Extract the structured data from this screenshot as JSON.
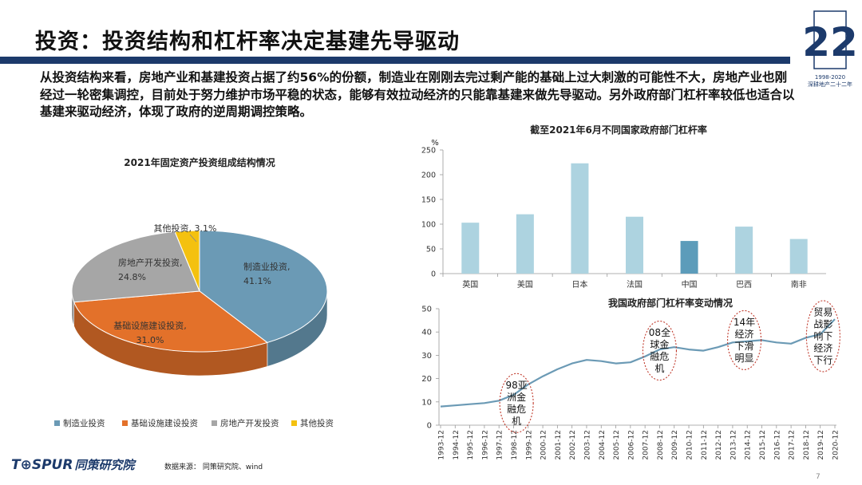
{
  "header": {
    "title": "投资：投资结构和杠杆率决定基建先导驱动",
    "logo_text": "深耕地产二十二年",
    "logo_years": "1998-2020",
    "logo_number": "22"
  },
  "intro": "从投资结构来看，房地产业和基建投资占据了约56%的份额，制造业在刚刚去完过剩产能的基础上过大刺激的可能性不大，房地产业也刚经过一轮密集调控，目前处于努力维护市场平稳的状态，能够有效拉动经济的只能靠基建来做先导驱动。另外政府部门杠杆率较低也适合以基建来驱动经济，体现了政府的逆周期调控策略。",
  "chart_data": [
    {
      "type": "pie",
      "title": "2021年固定资产投资组成结构情况",
      "slices": [
        {
          "name": "制造业投资",
          "value": 41.1,
          "label": "制造业投资, 41.1%",
          "color": "#6b9ab5"
        },
        {
          "name": "基础设施建设投资",
          "value": 31.0,
          "label": "基础设施建设投资, 31.0%",
          "color": "#e3712a"
        },
        {
          "name": "房地产开发投资",
          "value": 24.8,
          "label": "房地产开发投资, 24.8%",
          "color": "#a6a6a6"
        },
        {
          "name": "其他投资",
          "value": 3.1,
          "label": "其他投资, 3.1%",
          "color": "#f4c10f"
        }
      ],
      "legend": [
        "制造业投资",
        "基础设施建设投资",
        "房地产开发投资",
        "其他投资"
      ]
    },
    {
      "type": "bar",
      "title": "截至2021年6月不同国家政府部门杠杆率",
      "unit": "%",
      "categories": [
        "英国",
        "美国",
        "日本",
        "法国",
        "中国",
        "巴西",
        "南非"
      ],
      "values": [
        103,
        120,
        223,
        115,
        66,
        95,
        70
      ],
      "ylim": [
        0,
        250
      ],
      "yticks": [
        0,
        50,
        100,
        150,
        200,
        250
      ],
      "color": "#add3e0",
      "highlight_color": "#5c9cba",
      "highlight_index": 4
    },
    {
      "type": "line",
      "title": "我国政府部门杠杆率变动情况",
      "ylim": [
        0,
        50
      ],
      "yticks": [
        0,
        10,
        20,
        30,
        40,
        50
      ],
      "xlabels": [
        "1993-12",
        "1994-12",
        "1995-12",
        "1996-12",
        "1997-12",
        "1998-12",
        "1999-12",
        "2000-12",
        "2001-12",
        "2002-12",
        "2003-12",
        "2004-12",
        "2005-12",
        "2006-12",
        "2007-12",
        "2008-12",
        "2009-12",
        "2010-12",
        "2011-12",
        "2012-12",
        "2013-12",
        "2014-12",
        "2015-12",
        "2016-12",
        "2017-12",
        "2018-12",
        "2019-12",
        "2020-12"
      ],
      "values": [
        8.0,
        8.5,
        9.0,
        9.5,
        10.5,
        13.0,
        17.5,
        21.0,
        24.0,
        26.5,
        28.0,
        27.5,
        26.5,
        27.0,
        29.5,
        32.5,
        33.5,
        32.5,
        32.0,
        33.5,
        35.5,
        36.0,
        36.5,
        35.5,
        35.0,
        37.5,
        39.0,
        45.5
      ],
      "color": "#6b9ab5",
      "annotations": [
        {
          "text": "98亚洲金融危机",
          "lines": [
            "98亚",
            "洲金",
            "融危",
            "机"
          ],
          "x_index": 5.2,
          "y": 9.5
        },
        {
          "text": "08全球金融危机",
          "lines": [
            "08全",
            "球金",
            "融危",
            "机"
          ],
          "x_index": 15.0,
          "y": 32
        },
        {
          "text": "14年经济下滑明显",
          "lines": [
            "14年",
            "经济",
            "下滑",
            "明显"
          ],
          "x_index": 20.8,
          "y": 36.5
        },
        {
          "text": "贸易战影响下经济下行",
          "lines": [
            "贸易",
            "战影",
            "响下",
            "经济",
            "下行"
          ],
          "x_index": 26.2,
          "y": 43
        }
      ]
    }
  ],
  "footer": {
    "brand_en": "T⊕SPUR",
    "brand_cn": "同策研究院",
    "source": "数据来源：  同策研究院、wind",
    "page": "7"
  }
}
